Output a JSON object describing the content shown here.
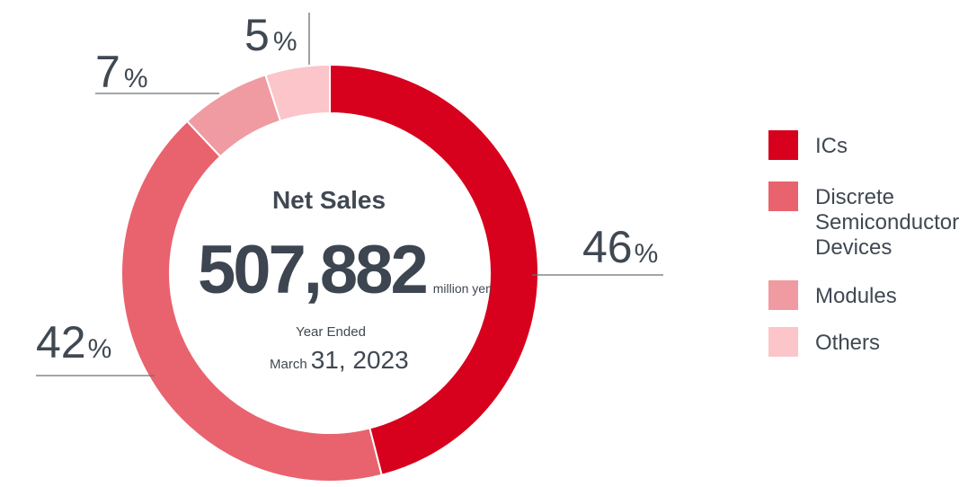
{
  "chart_data": {
    "type": "pie",
    "categories": [
      "ICs",
      "Discrete Semiconductor Devices",
      "Modules",
      "Others"
    ],
    "values": [
      46,
      42,
      7,
      5
    ],
    "value_labels": [
      "46",
      "42",
      "7",
      "5"
    ],
    "value_suffix": "%",
    "colors": [
      "#d7001d",
      "#e8636e",
      "#ef9ba1",
      "#fbc5ca"
    ],
    "legend_lines": [
      [
        "ICs"
      ],
      [
        "Discrete",
        "Semiconductor",
        "Devices"
      ],
      [
        "Modules"
      ],
      [
        "Others"
      ]
    ],
    "legend_position": "right",
    "center": {
      "title": "Net Sales",
      "value": "507,882",
      "unit": "million yen",
      "subtitle": "Year Ended",
      "date_prefix": "March",
      "date_main": "31, 2023"
    }
  }
}
